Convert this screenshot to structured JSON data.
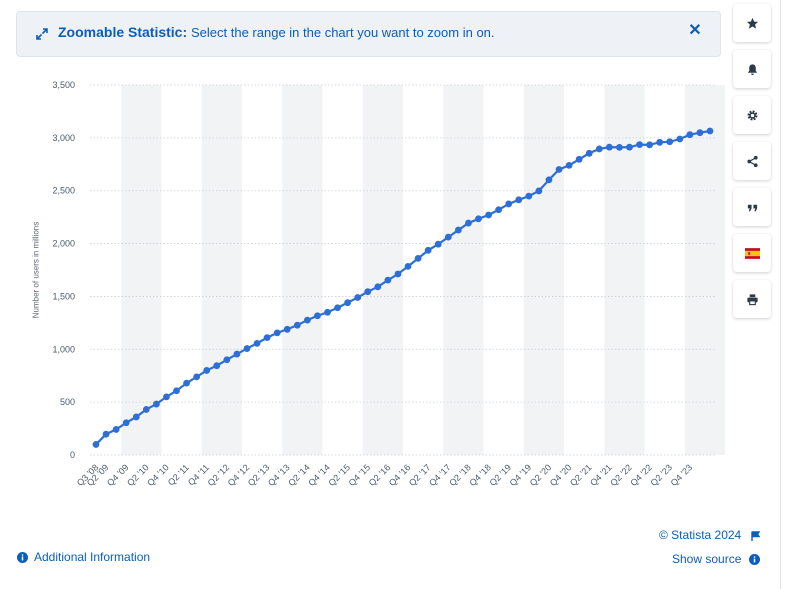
{
  "banner": {
    "title": "Zoomable Statistic:",
    "text": "Select the range in the chart you want to zoom in on.",
    "icon": "expand-icon",
    "close_icon": "close-icon"
  },
  "toolbar": {
    "items": [
      {
        "name": "favorite-button",
        "icon": "star-icon"
      },
      {
        "name": "notification-button",
        "icon": "bell-icon"
      },
      {
        "name": "settings-button",
        "icon": "gear-icon"
      },
      {
        "name": "share-button",
        "icon": "share-icon"
      },
      {
        "name": "cite-button",
        "icon": "quote-icon"
      },
      {
        "name": "language-button",
        "icon": "spain-flag-icon"
      },
      {
        "name": "print-button",
        "icon": "print-icon"
      }
    ]
  },
  "chart_data": {
    "type": "line",
    "title": "",
    "xlabel": "",
    "ylabel": "Number of users in millions",
    "ylim": [
      0,
      3500
    ],
    "yticks": [
      0,
      500,
      1000,
      1500,
      2000,
      2500,
      3000,
      3500
    ],
    "ytick_labels": [
      "0",
      "500",
      "1,000",
      "1,500",
      "2,000",
      "2,500",
      "3,000",
      "3,500"
    ],
    "xtick_labels": [
      "Q3 '08",
      "Q2 '09",
      "Q4 '09",
      "Q2 '10",
      "Q4 '10",
      "Q2 '11",
      "Q4 '11",
      "Q2 '12",
      "Q4 '12",
      "Q2 '13",
      "Q4 '13",
      "Q2 '14",
      "Q4 '14",
      "Q2 '15",
      "Q4 '15",
      "Q2 '16",
      "Q4 '16",
      "Q2 '17",
      "Q4 '17",
      "Q2 '18",
      "Q4 '18",
      "Q2 '19",
      "Q4 '19",
      "Q2 '20",
      "Q4 '20",
      "Q2 '21",
      "Q4 '21",
      "Q2 '22",
      "Q4 '22",
      "Q2 '23",
      "Q4 '23"
    ],
    "xtick_index": [
      0,
      1,
      3,
      5,
      7,
      9,
      11,
      13,
      15,
      17,
      19,
      21,
      23,
      25,
      27,
      29,
      31,
      33,
      35,
      37,
      39,
      41,
      43,
      45,
      47,
      49,
      51,
      53,
      55,
      57,
      59
    ],
    "grid": true,
    "series": [
      {
        "color": "#2e6fd6",
        "x": [
          "Q3 '08",
          "Q4 '08",
          "Q1 '09",
          "Q2 '09",
          "Q3 '09",
          "Q4 '09",
          "Q1 '10",
          "Q2 '10",
          "Q3 '10",
          "Q4 '10",
          "Q1 '11",
          "Q2 '11",
          "Q3 '11",
          "Q4 '11",
          "Q1 '12",
          "Q2 '12",
          "Q3 '12",
          "Q4 '12",
          "Q1 '13",
          "Q2 '13",
          "Q3 '13",
          "Q4 '13",
          "Q1 '14",
          "Q2 '14",
          "Q3 '14",
          "Q4 '14",
          "Q1 '15",
          "Q2 '15",
          "Q3 '15",
          "Q4 '15",
          "Q1 '16",
          "Q2 '16",
          "Q3 '16",
          "Q4 '16",
          "Q1 '17",
          "Q2 '17",
          "Q3 '17",
          "Q4 '17",
          "Q1 '18",
          "Q2 '18",
          "Q3 '18",
          "Q4 '18",
          "Q1 '19",
          "Q2 '19",
          "Q3 '19",
          "Q4 '19",
          "Q1 '20",
          "Q2 '20",
          "Q3 '20",
          "Q4 '20",
          "Q1 '21",
          "Q2 '21",
          "Q3 '21",
          "Q4 '21",
          "Q1 '22",
          "Q2 '22",
          "Q3 '22",
          "Q4 '22",
          "Q1 '23",
          "Q2 '23",
          "Q3 '23",
          "Q4 '23"
        ],
        "values": [
          100,
          197,
          242,
          305,
          360,
          431,
          482,
          550,
          608,
          680,
          739,
          800,
          845,
          901,
          955,
          1007,
          1056,
          1110,
          1155,
          1189,
          1228,
          1276,
          1317,
          1350,
          1393,
          1441,
          1490,
          1545,
          1591,
          1654,
          1712,
          1784,
          1860,
          1936,
          1994,
          2061,
          2128,
          2194,
          2234,
          2270,
          2320,
          2375,
          2414,
          2449,
          2498,
          2603,
          2701,
          2740,
          2797,
          2854,
          2895,
          2912,
          2910,
          2912,
          2936,
          2934,
          2958,
          2963,
          2989,
          3030,
          3049,
          3065
        ]
      }
    ]
  },
  "footer": {
    "credit": "© Statista 2024",
    "additional_info": "Additional Information",
    "show_source": "Show source"
  }
}
